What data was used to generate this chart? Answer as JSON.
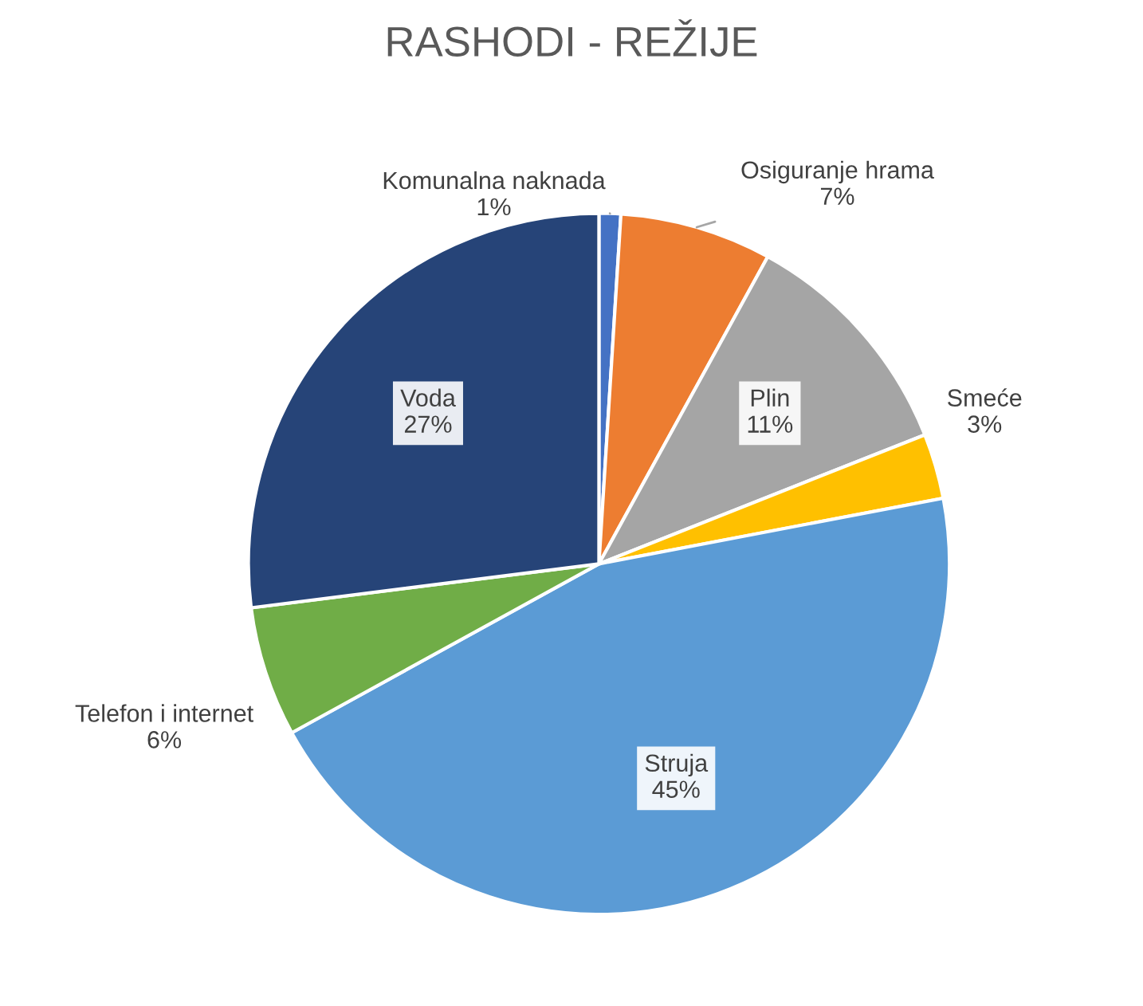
{
  "chart_data": {
    "type": "pie",
    "title": "RASHODI - REŽIJE",
    "categories": [
      "Komunalna naknada",
      "Osiguranje hrama",
      "Plin",
      "Smeće",
      "Struja",
      "Telefon i internet",
      "Voda"
    ],
    "values": [
      1,
      7,
      11,
      3,
      45,
      6,
      27
    ],
    "value_labels": [
      "1%",
      "7%",
      "11%",
      "3%",
      "45%",
      "6%",
      "27%"
    ],
    "colors": [
      "#4472c4",
      "#ed7d31",
      "#a5a5a5",
      "#ffc000",
      "#5b9bd5",
      "#70ad47",
      "#264478"
    ],
    "legend": false
  }
}
